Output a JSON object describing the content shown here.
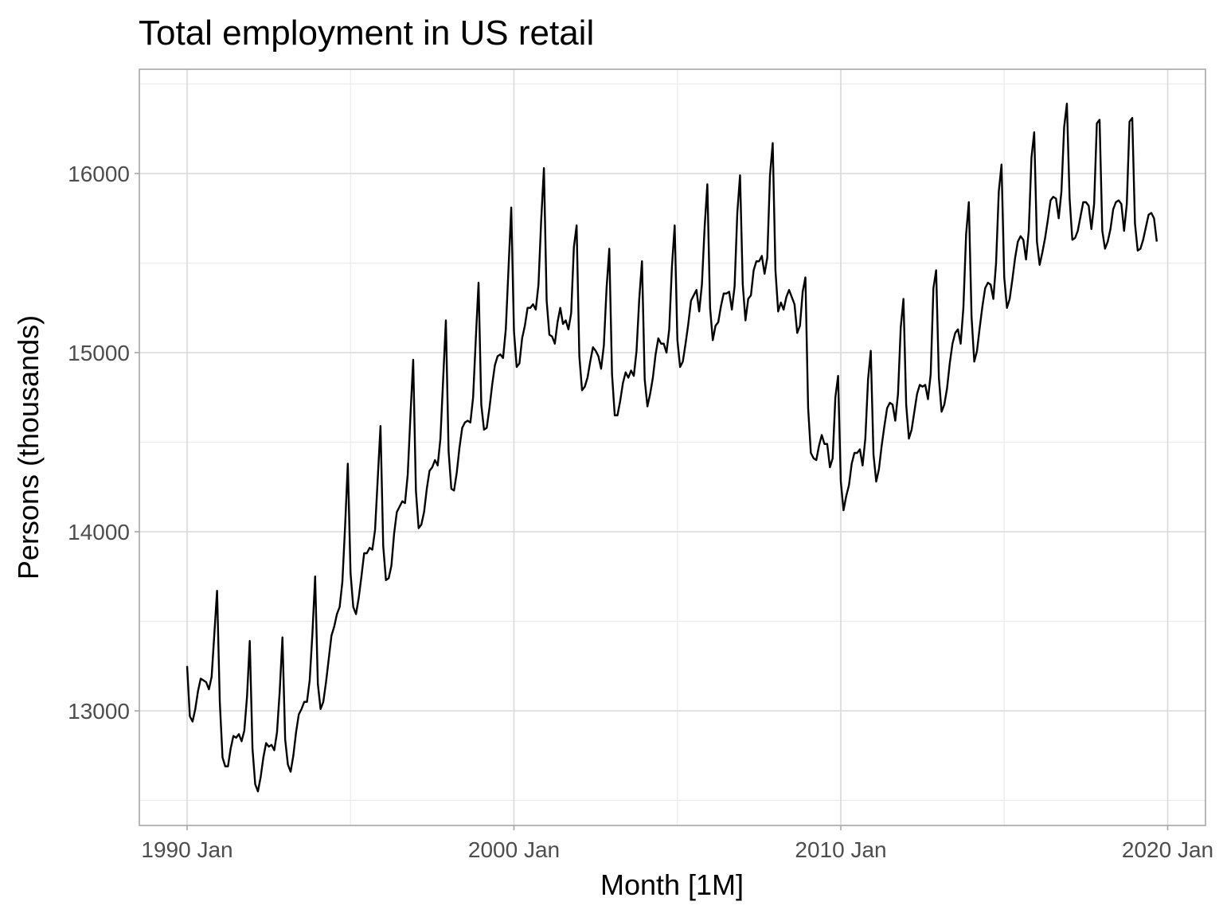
{
  "chart_data": {
    "type": "line",
    "title": "Total employment in US retail",
    "xlabel": "Month [1M]",
    "ylabel": "Persons (thousands)",
    "x_tick_labels": [
      "1990 Jan",
      "2000 Jan",
      "2010 Jan",
      "2020 Jan"
    ],
    "y_tick_labels": [
      "13000",
      "14000",
      "15000",
      "16000"
    ],
    "x_start": "1990 Jan",
    "frequency": "monthly",
    "grid": true,
    "legend": "none",
    "series": [
      {
        "color": "#000000",
        "values": [
          13250,
          12970,
          12940,
          13010,
          13110,
          13180,
          13170,
          13160,
          13120,
          13190,
          13430,
          13670,
          13050,
          12740,
          12690,
          12690,
          12790,
          12860,
          12850,
          12870,
          12830,
          12890,
          13080,
          13390,
          12790,
          12590,
          12550,
          12630,
          12740,
          12820,
          12800,
          12810,
          12780,
          12880,
          13110,
          13410,
          12840,
          12700,
          12660,
          12750,
          12880,
          12980,
          13010,
          13050,
          13050,
          13170,
          13430,
          13750,
          13150,
          13010,
          13050,
          13160,
          13290,
          13420,
          13470,
          13540,
          13580,
          13720,
          14030,
          14380,
          13770,
          13580,
          13540,
          13630,
          13750,
          13880,
          13880,
          13910,
          13900,
          14010,
          14300,
          14590,
          13920,
          13730,
          13740,
          13810,
          13990,
          14110,
          14140,
          14170,
          14160,
          14320,
          14650,
          14960,
          14230,
          14020,
          14040,
          14110,
          14240,
          14340,
          14360,
          14400,
          14370,
          14520,
          14850,
          15180,
          14450,
          14240,
          14230,
          14330,
          14470,
          14580,
          14610,
          14620,
          14610,
          14750,
          15080,
          15390,
          14710,
          14570,
          14580,
          14690,
          14820,
          14930,
          14980,
          14990,
          14970,
          15130,
          15470,
          15810,
          15120,
          14920,
          14940,
          15080,
          15150,
          15250,
          15250,
          15270,
          15240,
          15380,
          15740,
          16030,
          15290,
          15100,
          15090,
          15050,
          15170,
          15250,
          15160,
          15180,
          15130,
          15220,
          15590,
          15710,
          14980,
          14790,
          14810,
          14860,
          14950,
          15030,
          15010,
          14980,
          14910,
          15040,
          15360,
          15580,
          14880,
          14650,
          14650,
          14730,
          14830,
          14890,
          14860,
          14900,
          14870,
          15010,
          15300,
          15510,
          14850,
          14700,
          14770,
          14860,
          14990,
          15080,
          15050,
          15050,
          15000,
          15130,
          15480,
          15710,
          15070,
          14920,
          14950,
          15050,
          15160,
          15290,
          15320,
          15350,
          15230,
          15380,
          15700,
          15940,
          15250,
          15070,
          15150,
          15170,
          15260,
          15330,
          15330,
          15340,
          15240,
          15370,
          15780,
          15990,
          15380,
          15180,
          15300,
          15320,
          15460,
          15510,
          15510,
          15540,
          15440,
          15530,
          15990,
          16170,
          15460,
          15230,
          15280,
          15240,
          15310,
          15350,
          15310,
          15270,
          15110,
          15150,
          15340,
          15420,
          14690,
          14440,
          14410,
          14400,
          14480,
          14540,
          14490,
          14490,
          14360,
          14410,
          14750,
          14870,
          14280,
          14120,
          14200,
          14260,
          14380,
          14440,
          14440,
          14460,
          14370,
          14520,
          14850,
          15010,
          14430,
          14280,
          14350,
          14480,
          14590,
          14690,
          14720,
          14710,
          14620,
          14770,
          15140,
          15300,
          14710,
          14520,
          14570,
          14670,
          14770,
          14820,
          14810,
          14820,
          14740,
          14880,
          15360,
          15460,
          14860,
          14670,
          14710,
          14800,
          14940,
          15050,
          15110,
          15130,
          15050,
          15250,
          15660,
          15840,
          15200,
          14950,
          15010,
          15140,
          15260,
          15360,
          15390,
          15380,
          15300,
          15500,
          15900,
          16050,
          15420,
          15250,
          15300,
          15410,
          15530,
          15620,
          15650,
          15630,
          15520,
          15680,
          16090,
          16230,
          15620,
          15490,
          15560,
          15640,
          15740,
          15850,
          15870,
          15860,
          15750,
          15900,
          16260,
          16390,
          15860,
          15630,
          15640,
          15680,
          15760,
          15840,
          15840,
          15820,
          15690,
          15830,
          16280,
          16300,
          15680,
          15580,
          15620,
          15690,
          15800,
          15840,
          15850,
          15830,
          15680,
          15830,
          16290,
          16310,
          15720,
          15570,
          15580,
          15630,
          15700,
          15770,
          15780,
          15750,
          15620
        ]
      }
    ]
  }
}
